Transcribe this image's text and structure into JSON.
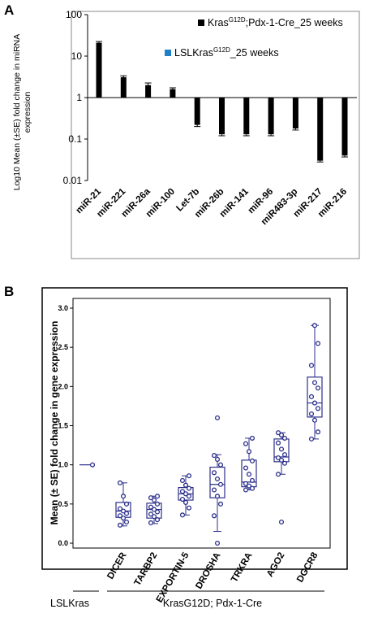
{
  "panel_a": {
    "letter": "A",
    "ylabel_line1": "Log10 Mean (±SE) fold change in miRNA",
    "ylabel_line2": "expression",
    "legend": [
      {
        "pre": "Kras",
        "sup": "G12D",
        "post": ";Pdx-1-Cre_25 weeks",
        "color": "#000000"
      },
      {
        "pre": "LSLKras",
        "sup": "G12D",
        "post": "_25 weeks",
        "color": "#1f7fc7"
      }
    ],
    "y_ticks": [
      "100",
      "10",
      "1",
      "0.1",
      "0.01"
    ]
  },
  "panel_b": {
    "letter": "B",
    "ylabel": "Mean (± SE) fold change in gene expression",
    "y_ticks": [
      "0.0",
      "0.5",
      "1.0",
      "1.5",
      "2.0",
      "2.5",
      "3.0"
    ],
    "group_labels": {
      "lslkras": "LSLKras",
      "kras": "KrasG12D; Pdx-1-Cre"
    }
  },
  "chart_data": [
    {
      "type": "bar",
      "scale": "log",
      "categories": [
        "miR-21",
        "miR-221",
        "miR-26a",
        "miR-100",
        "Let-7b",
        "miR-26b",
        "miR-141",
        "miR-96",
        "miR483-3p",
        "miR-217",
        "miR-216"
      ],
      "series": [
        {
          "name": "KrasG12D;Pdx-1-Cre_25 weeks",
          "values": [
            21,
            3.1,
            2.0,
            1.6,
            0.22,
            0.13,
            0.13,
            0.13,
            0.18,
            0.03,
            0.04
          ],
          "errors": [
            1.5,
            0.25,
            0.25,
            0.12,
            0.02,
            0.01,
            0.01,
            0.01,
            0.015,
            0.002,
            0.003
          ]
        }
      ],
      "baseline": 1,
      "ylim": [
        0.01,
        100
      ],
      "color": "#000000"
    },
    {
      "type": "box",
      "categories": [
        "LSLKras",
        "DICER",
        "TARBP2",
        "EXPORTIN-5",
        "DROSHA",
        "TRKRA",
        "AGO2",
        "DGCR8"
      ],
      "boxes": [
        {
          "min": 1.0,
          "q1": 1.0,
          "median": 1.0,
          "q3": 1.0,
          "max": 1.0,
          "points": [
            1.0
          ],
          "outliers": []
        },
        {
          "min": 0.22,
          "q1": 0.33,
          "median": 0.41,
          "q3": 0.52,
          "max": 0.77,
          "points": [
            0.23,
            0.27,
            0.32,
            0.35,
            0.38,
            0.41,
            0.44,
            0.5,
            0.6,
            0.77
          ],
          "outliers": []
        },
        {
          "min": 0.25,
          "q1": 0.32,
          "median": 0.43,
          "q3": 0.51,
          "max": 0.6,
          "points": [
            0.26,
            0.3,
            0.34,
            0.37,
            0.4,
            0.43,
            0.46,
            0.5,
            0.55,
            0.58,
            0.6
          ],
          "outliers": []
        },
        {
          "min": 0.36,
          "q1": 0.55,
          "median": 0.63,
          "q3": 0.71,
          "max": 0.86,
          "points": [
            0.36,
            0.45,
            0.52,
            0.56,
            0.6,
            0.63,
            0.66,
            0.7,
            0.74,
            0.8,
            0.86
          ],
          "outliers": []
        },
        {
          "min": 0.15,
          "q1": 0.58,
          "median": 0.75,
          "q3": 0.97,
          "max": 1.13,
          "points": [
            0.35,
            0.5,
            0.6,
            0.68,
            0.75,
            0.82,
            0.9,
            1.0,
            1.07,
            1.12
          ],
          "outliers": [
            0.0,
            1.6
          ]
        },
        {
          "min": 0.68,
          "q1": 0.72,
          "median": 0.78,
          "q3": 1.06,
          "max": 1.34,
          "points": [
            0.68,
            0.7,
            0.73,
            0.76,
            0.8,
            0.88,
            0.96,
            1.05,
            1.17,
            1.27,
            1.34
          ],
          "outliers": []
        },
        {
          "min": 0.88,
          "q1": 1.04,
          "median": 1.1,
          "q3": 1.33,
          "max": 1.41,
          "points": [
            0.88,
            1.02,
            1.06,
            1.09,
            1.13,
            1.2,
            1.28,
            1.34,
            1.38,
            1.41
          ],
          "outliers": [
            0.27
          ]
        },
        {
          "min": 1.33,
          "q1": 1.61,
          "median": 1.79,
          "q3": 2.12,
          "max": 2.78,
          "points": [
            1.33,
            1.42,
            1.57,
            1.65,
            1.72,
            1.79,
            1.87,
            1.98,
            2.05,
            2.27,
            2.55,
            2.78
          ],
          "outliers": []
        }
      ],
      "ylim": [
        0,
        3.0
      ],
      "color": "#2b2f8a"
    }
  ]
}
